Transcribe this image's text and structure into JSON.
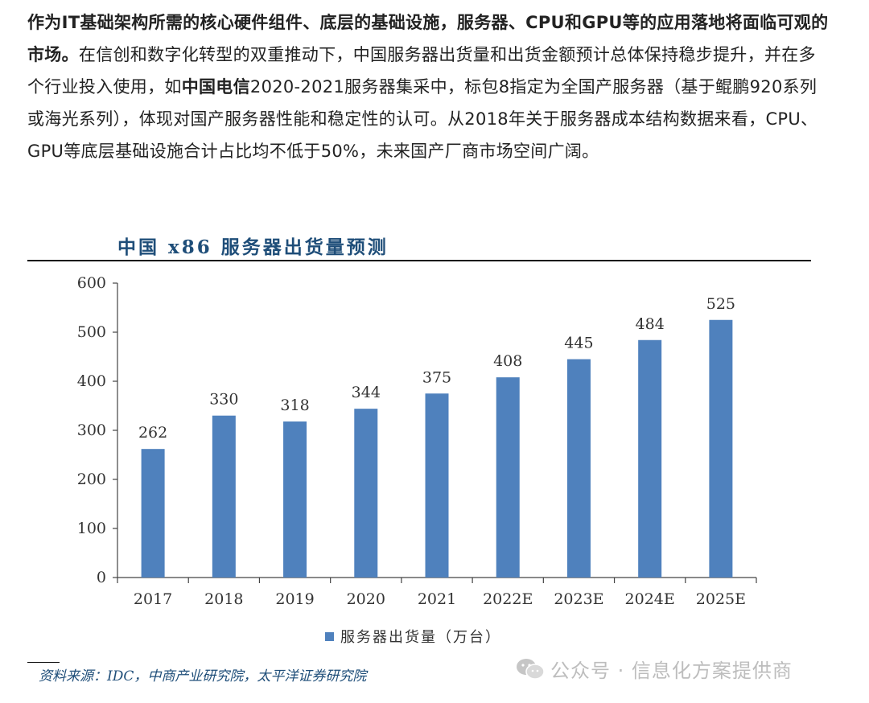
{
  "article": {
    "lead_bold": "作为IT基础架构所需的核心硬件组件、底层的基础设施，服务器、CPU和GPU等的应用落地将面临可观的市场。",
    "text_1": "在信创和数字化转型的双重推动下，中国服务器出货量和出货金额预计总体保持稳步提升，并在多个行业投入使用，如",
    "bold_2": "中国电信",
    "text_2": "2020-2021服务器集采中，标包8指定为全国产服务器（基于鲲鹏920系列或海光系列），体现对国产服务器性能和稳定性的认可。从2018年关于服务器成本结构数据来看，CPU、GPU等底层基础设施合计占比均不低于50%，未来国产厂商市场空间广阔。"
  },
  "chart_data": {
    "type": "bar",
    "title": "中国 x86 服务器出货量预测",
    "categories": [
      "2017",
      "2018",
      "2019",
      "2020",
      "2021",
      "2022E",
      "2023E",
      "2024E",
      "2025E"
    ],
    "series": [
      {
        "name": "服务器出货量（万台）",
        "values": [
          262,
          330,
          318,
          344,
          375,
          408,
          445,
          484,
          525
        ],
        "color": "#4f81bd"
      }
    ],
    "yticks": [
      0,
      100,
      200,
      300,
      400,
      500,
      600
    ],
    "ylim": [
      0,
      600
    ],
    "grid": false,
    "legend_position": "bottom"
  },
  "source": "资料来源：IDC，中商产业研究院，太平洋证券研究院",
  "watermark": {
    "icon": "wechat-icon",
    "text": "公众号 · 信息化方案提供商"
  }
}
